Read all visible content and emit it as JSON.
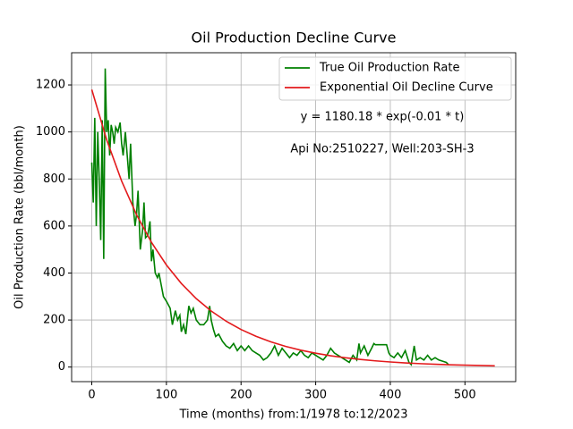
{
  "chart_data": {
    "type": "line",
    "title": "Oil Production Decline Curve",
    "xlabel": "Time (months) from:1/1978 to:12/2023",
    "ylabel": "Oil Production Rate (bbl/month)",
    "annotations": [
      "y = 1180.18 * exp(-0.01 * t)",
      "Api No:2510227, Well:203-SH-3"
    ],
    "legend": "upper right",
    "grid": true,
    "xlim": [
      -27,
      568
    ],
    "ylim": [
      -62,
      1337
    ],
    "xticks": [
      0,
      100,
      200,
      300,
      400,
      500
    ],
    "yticks": [
      0,
      200,
      400,
      600,
      800,
      1000,
      1200
    ],
    "series": [
      {
        "name": "True Oil Production Rate",
        "color": "#008000",
        "x": [
          0,
          2,
          4,
          6,
          8,
          10,
          12,
          14,
          16,
          18,
          20,
          22,
          24,
          26,
          28,
          30,
          32,
          35,
          38,
          40,
          42,
          45,
          48,
          50,
          52,
          55,
          58,
          60,
          62,
          65,
          68,
          70,
          72,
          75,
          78,
          80,
          82,
          85,
          88,
          90,
          93,
          96,
          100,
          105,
          108,
          112,
          115,
          118,
          120,
          123,
          126,
          130,
          133,
          136,
          140,
          145,
          150,
          155,
          158,
          160,
          163,
          166,
          170,
          175,
          180,
          185,
          190,
          195,
          200,
          205,
          210,
          215,
          220,
          225,
          230,
          235,
          240,
          245,
          250,
          255,
          260,
          265,
          270,
          275,
          280,
          285,
          290,
          295,
          300,
          305,
          310,
          315,
          320,
          325,
          330,
          335,
          340,
          345,
          350,
          355,
          358,
          360,
          365,
          370,
          375,
          378,
          380,
          385,
          390,
          395,
          398,
          400,
          405,
          410,
          415,
          420,
          425,
          428,
          430,
          432,
          435,
          440,
          445,
          450,
          455,
          460,
          465,
          470,
          475,
          478
        ],
        "values": [
          870,
          700,
          1060,
          600,
          1000,
          800,
          540,
          1050,
          460,
          1270,
          1000,
          1050,
          900,
          1030,
          1000,
          950,
          1020,
          1000,
          1040,
          950,
          900,
          1000,
          880,
          800,
          950,
          700,
          600,
          650,
          750,
          500,
          580,
          700,
          550,
          560,
          620,
          450,
          500,
          400,
          380,
          400,
          350,
          300,
          280,
          250,
          180,
          240,
          200,
          220,
          150,
          180,
          140,
          260,
          230,
          250,
          200,
          180,
          180,
          200,
          260,
          200,
          160,
          130,
          140,
          110,
          90,
          80,
          100,
          70,
          90,
          70,
          90,
          70,
          60,
          50,
          30,
          40,
          60,
          90,
          50,
          80,
          60,
          40,
          60,
          50,
          70,
          50,
          40,
          60,
          50,
          40,
          30,
          50,
          80,
          60,
          50,
          40,
          30,
          20,
          50,
          30,
          100,
          60,
          90,
          50,
          80,
          100,
          95,
          95,
          95,
          95,
          60,
          50,
          40,
          60,
          40,
          70,
          20,
          10,
          50,
          90,
          30,
          40,
          30,
          50,
          30,
          40,
          30,
          25,
          20,
          10
        ]
      },
      {
        "name": "Exponential Oil Decline Curve",
        "color": "#e31a1c",
        "x": [
          0,
          20,
          40,
          60,
          80,
          100,
          120,
          140,
          160,
          180,
          200,
          220,
          240,
          260,
          280,
          300,
          320,
          340,
          360,
          380,
          400,
          420,
          440,
          460,
          480,
          500,
          520,
          540
        ],
        "values": [
          1180.18,
          966.3,
          791.1,
          647.7,
          530.3,
          434.2,
          355.5,
          291.0,
          238.3,
          195.1,
          159.7,
          130.8,
          107.1,
          87.7,
          71.8,
          58.8,
          48.1,
          39.4,
          32.3,
          26.4,
          21.6,
          17.7,
          14.5,
          11.9,
          9.7,
          8.0,
          6.5,
          5.3
        ]
      }
    ]
  }
}
